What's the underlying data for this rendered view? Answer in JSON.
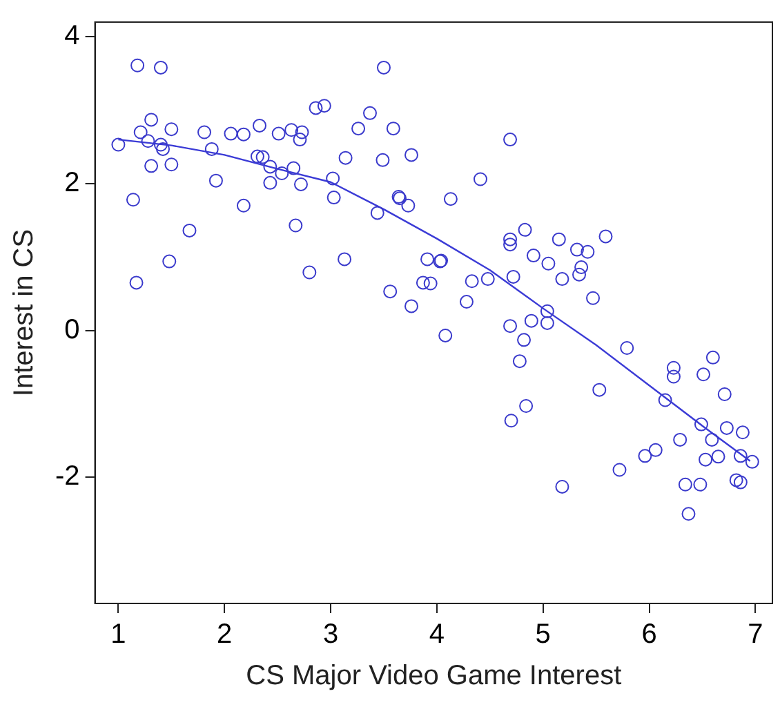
{
  "chart_data": {
    "type": "scatter",
    "xlabel": "CS Major Video Game Interest",
    "ylabel": "Interest in CS",
    "xlim": [
      0.78,
      7.16
    ],
    "ylim": [
      -3.72,
      4.2
    ],
    "xticks": [
      1,
      2,
      3,
      4,
      5,
      6,
      7
    ],
    "yticks": [
      -2,
      0,
      2,
      4
    ],
    "grid": false,
    "legend": false,
    "series": [
      {
        "color": "#3a3acc",
        "marker": "circle",
        "x": [
          1.0,
          1.21,
          1.31,
          1.28,
          1.4,
          1.42,
          1.5,
          1.31,
          1.5,
          1.14,
          1.67,
          1.48,
          1.17,
          1.81,
          1.88,
          1.92,
          2.06,
          2.18,
          2.18,
          2.33,
          2.31,
          2.36,
          2.43,
          2.43,
          2.51,
          2.54,
          2.63,
          2.73,
          2.71,
          2.65,
          2.72,
          2.67,
          2.8,
          2.86,
          2.94,
          3.02,
          3.03,
          3.13,
          3.14,
          3.26,
          3.37,
          3.49,
          3.44,
          3.59,
          3.56,
          3.76,
          3.76,
          3.64,
          3.65,
          3.73,
          3.91,
          3.87,
          3.94,
          4.03,
          1.18,
          1.4,
          3.5,
          4.69,
          4.41,
          4.13,
          4.83,
          4.69,
          4.69,
          5.15,
          5.59,
          4.91,
          5.05,
          5.32,
          5.42,
          5.36,
          5.34,
          5.18,
          4.04,
          4.33,
          4.48,
          4.72,
          4.28,
          4.08,
          5.47,
          5.04,
          4.89,
          5.04,
          4.69,
          4.82,
          4.78,
          5.79,
          6.6,
          6.23,
          6.23,
          6.51,
          5.53,
          6.15,
          6.71,
          4.84,
          4.7,
          6.49,
          6.73,
          6.88,
          6.59,
          6.29,
          6.06,
          5.96,
          6.53,
          6.65,
          6.86,
          6.97,
          5.72,
          6.34,
          6.48,
          6.82,
          6.86,
          5.18,
          6.37
        ],
        "values": [
          2.53,
          2.7,
          2.87,
          2.58,
          2.53,
          2.47,
          2.74,
          2.24,
          2.26,
          1.78,
          1.36,
          0.94,
          0.65,
          2.7,
          2.47,
          2.04,
          2.68,
          2.67,
          1.7,
          2.79,
          2.37,
          2.36,
          2.23,
          2.01,
          2.68,
          2.14,
          2.73,
          2.7,
          2.6,
          2.21,
          1.99,
          1.43,
          0.79,
          3.03,
          3.06,
          2.07,
          1.81,
          0.97,
          2.35,
          2.75,
          2.96,
          2.32,
          1.6,
          2.75,
          0.53,
          0.33,
          2.39,
          1.82,
          1.8,
          1.7,
          0.97,
          0.65,
          0.64,
          0.94,
          3.61,
          3.58,
          3.58,
          2.6,
          2.06,
          1.79,
          1.37,
          1.24,
          1.17,
          1.24,
          1.28,
          1.02,
          0.91,
          1.1,
          1.07,
          0.86,
          0.76,
          0.7,
          0.95,
          0.67,
          0.7,
          0.73,
          0.39,
          -0.07,
          0.44,
          0.26,
          0.13,
          0.1,
          0.06,
          -0.13,
          -0.42,
          -0.24,
          -0.37,
          -0.51,
          -0.63,
          -0.6,
          -0.81,
          -0.95,
          -0.87,
          -1.03,
          -1.23,
          -1.28,
          -1.33,
          -1.39,
          -1.49,
          -1.49,
          -1.63,
          -1.71,
          -1.76,
          -1.72,
          -1.71,
          -1.79,
          -1.9,
          -2.1,
          -2.1,
          -2.04,
          -2.07,
          -2.13,
          -2.5
        ]
      },
      {
        "type": "line",
        "color": "#3b3bd6",
        "marker": "none",
        "line_style": "solid",
        "x": [
          1.0,
          1.5,
          2.0,
          2.5,
          3.0,
          3.5,
          4.0,
          4.5,
          5.0,
          5.5,
          6.0,
          6.5,
          6.95
        ],
        "values": [
          2.6,
          2.52,
          2.39,
          2.2,
          2.02,
          1.65,
          1.25,
          0.82,
          0.3,
          -0.2,
          -0.75,
          -1.3,
          -1.78
        ]
      }
    ]
  }
}
